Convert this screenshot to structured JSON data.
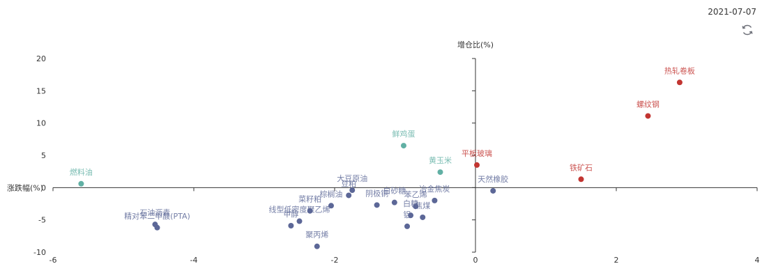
{
  "date": "2021-07-07",
  "icons": {
    "refresh": "refresh-icon"
  },
  "colors": {
    "up": "#c23531",
    "neutral": "#5c6797",
    "special": "#61b0a4",
    "axis": "#333333"
  },
  "chart_data": {
    "type": "scatter",
    "xlabel": "增仓比(%)",
    "ylabel": "涨跌幅(%)",
    "xlim": [
      -6,
      4
    ],
    "ylim": [
      -10,
      20
    ],
    "xticks": [
      -6,
      -4,
      -2,
      0,
      2,
      4
    ],
    "yticks": [
      -10,
      -5,
      0,
      5,
      10,
      15,
      20
    ],
    "points": [
      {
        "name": "热轧卷板",
        "x": 2.9,
        "y": 16.3,
        "group": "up"
      },
      {
        "name": "螺纹钢",
        "x": 2.45,
        "y": 11.1,
        "group": "up"
      },
      {
        "name": "铁矿石",
        "x": 1.5,
        "y": 1.3,
        "group": "up"
      },
      {
        "name": "平板玻璃",
        "x": 0.02,
        "y": 3.5,
        "group": "up"
      },
      {
        "name": "燃料油",
        "x": -5.6,
        "y": 0.6,
        "group": "special"
      },
      {
        "name": "鲜鸡蛋",
        "x": -1.02,
        "y": 6.5,
        "group": "special"
      },
      {
        "name": "黄玉米",
        "x": -0.5,
        "y": 2.4,
        "group": "special"
      },
      {
        "name": "天然橡胶",
        "x": 0.25,
        "y": -0.5,
        "group": "neutral"
      },
      {
        "name": "冶金焦炭",
        "x": -0.58,
        "y": -2.0,
        "group": "neutral"
      },
      {
        "name": "苯乙烯",
        "x": -0.85,
        "y": -2.9,
        "group": "neutral"
      },
      {
        "name": "白糖",
        "x": -0.92,
        "y": -4.3,
        "group": "neutral"
      },
      {
        "name": "焦煤",
        "x": -0.75,
        "y": -4.6,
        "group": "neutral"
      },
      {
        "name": "铝",
        "x": -0.97,
        "y": -6.0,
        "group": "neutral"
      },
      {
        "name": "白砂糖",
        "x": -1.15,
        "y": -2.3,
        "group": "neutral"
      },
      {
        "name": "阴极铜",
        "x": -1.4,
        "y": -2.7,
        "group": "neutral"
      },
      {
        "name": "大豆原油",
        "x": -1.75,
        "y": -0.4,
        "group": "neutral"
      },
      {
        "name": "豆粕",
        "x": -1.8,
        "y": -1.2,
        "group": "neutral"
      },
      {
        "name": "棕榈油",
        "x": -2.05,
        "y": -2.8,
        "group": "neutral"
      },
      {
        "name": "菜籽粕",
        "x": -2.35,
        "y": -3.6,
        "group": "neutral"
      },
      {
        "name": "线型低密度聚乙烯",
        "x": -2.5,
        "y": -5.2,
        "group": "neutral"
      },
      {
        "name": "甲醇",
        "x": -2.62,
        "y": -5.9,
        "group": "neutral"
      },
      {
        "name": "聚丙烯",
        "x": -2.25,
        "y": -9.1,
        "group": "neutral"
      },
      {
        "name": "精对苯二甲酸(PTA)",
        "x": -4.52,
        "y": -6.2,
        "group": "neutral"
      },
      {
        "name": "石油沥青",
        "x": -4.55,
        "y": -5.7,
        "group": "neutral"
      }
    ]
  }
}
